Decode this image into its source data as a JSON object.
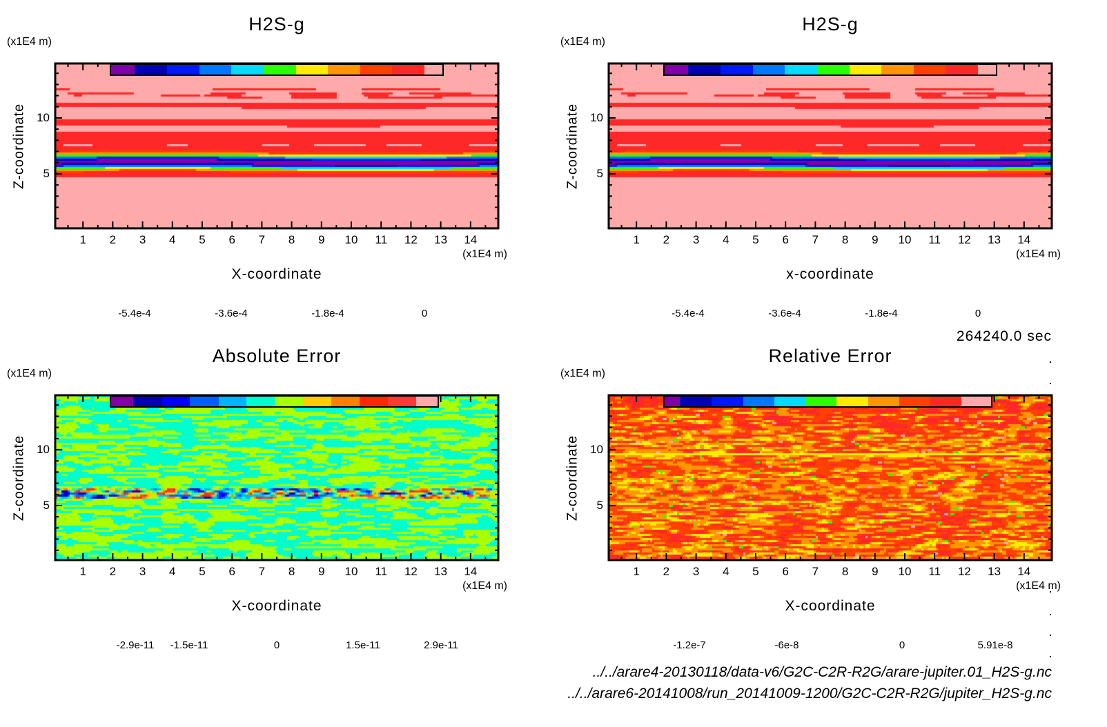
{
  "time_label": "264240.0 sec",
  "files": [
    "../../arare4-20130118/data-v6/G2C-C2R-R2G/arare-jupiter.01_H2S-g.nc",
    "../../arare6-20141008/run_20141009-1200/G2C-C2R-R2G/jupiter_H2S-g.nc"
  ],
  "chart_data": [
    {
      "type": "heatmap",
      "title": "H2S-g",
      "xlabel": "X-coordinate",
      "ylabel": "Z-coordinate",
      "x_unit": "(x1E4 m)",
      "y_unit": "(x1E4 m)",
      "xlim": [
        0,
        15
      ],
      "ylim": [
        0,
        15
      ],
      "x_ticks": [
        "1",
        "2",
        "3",
        "4",
        "5",
        "6",
        "7",
        "8",
        "9",
        "10",
        "11",
        "12",
        "13",
        "14"
      ],
      "y_ticks": [
        "5",
        "10"
      ],
      "colorbar": {
        "colors": [
          "#8000a8",
          "#0000bb",
          "#0018ff",
          "#0078ff",
          "#00dcff",
          "#2cff00",
          "#ffec00",
          "#ff9600",
          "#ff4000",
          "#ff2828",
          "#ffaaaa"
        ],
        "tick_labels": [
          "-5.4e-4",
          "-3.6e-4",
          "-1.8e-4",
          "0"
        ]
      },
      "description_field": "depletion band centered near Z=6, background ~0"
    },
    {
      "type": "heatmap",
      "title": "H2S-g",
      "xlabel": "x-coordinate",
      "ylabel": "Z-coordinate",
      "x_unit": "(x1E4 m)",
      "y_unit": "(x1E4 m)",
      "xlim": [
        0,
        15
      ],
      "ylim": [
        0,
        15
      ],
      "x_ticks": [
        "1",
        "2",
        "3",
        "4",
        "5",
        "6",
        "7",
        "8",
        "9",
        "10",
        "11",
        "12",
        "13",
        "14"
      ],
      "y_ticks": [
        "5",
        "10"
      ],
      "colorbar": {
        "colors": [
          "#8000a8",
          "#0000bb",
          "#0018ff",
          "#0078ff",
          "#00dcff",
          "#2cff00",
          "#ffec00",
          "#ff9600",
          "#ff4000",
          "#ff2828",
          "#ffaaaa"
        ],
        "tick_labels": [
          "-5.4e-4",
          "-3.6e-4",
          "-1.8e-4",
          "0"
        ]
      }
    },
    {
      "type": "heatmap",
      "title": "Absolute Error",
      "xlabel": "X-coordinate",
      "ylabel": "Z-coordinate",
      "x_unit": "(x1E4 m)",
      "y_unit": "(x1E4 m)",
      "xlim": [
        0,
        15
      ],
      "ylim": [
        0,
        15
      ],
      "x_ticks": [
        "1",
        "2",
        "3",
        "4",
        "5",
        "6",
        "7",
        "8",
        "9",
        "10",
        "11",
        "12",
        "13",
        "14"
      ],
      "y_ticks": [
        "5",
        "10"
      ],
      "colorbar": {
        "colors": [
          "#8000a8",
          "#0000b4",
          "#0000ff",
          "#0060ff",
          "#00b4ff",
          "#00ffcc",
          "#aaff00",
          "#ffcc00",
          "#ff8000",
          "#ff2800",
          "#ff3838",
          "#ffaaaa"
        ],
        "tick_labels": [
          "-2.9e-11",
          "-1.5e-11",
          "0",
          "1.5e-11",
          "2.9e-11"
        ]
      }
    },
    {
      "type": "heatmap",
      "title": "Relative Error",
      "xlabel": "X-coordinate",
      "ylabel": "Z-coordinate",
      "x_unit": "(x1E4 m)",
      "y_unit": "(x1E4 m)",
      "xlim": [
        0,
        15
      ],
      "ylim": [
        0,
        15
      ],
      "x_ticks": [
        "1",
        "2",
        "3",
        "4",
        "5",
        "6",
        "7",
        "8",
        "9",
        "10",
        "11",
        "12",
        "13",
        "14"
      ],
      "y_ticks": [
        "5",
        "10"
      ],
      "colorbar": {
        "colors": [
          "#8000a8",
          "#0000bb",
          "#0018ff",
          "#0078ff",
          "#00dcff",
          "#2cff00",
          "#ffec00",
          "#ff9600",
          "#ff4000",
          "#ff2828",
          "#ffaaaa"
        ],
        "tick_labels": [
          "-1.2e-7",
          "-6e-8",
          "0",
          "5.91e-8"
        ]
      }
    }
  ]
}
